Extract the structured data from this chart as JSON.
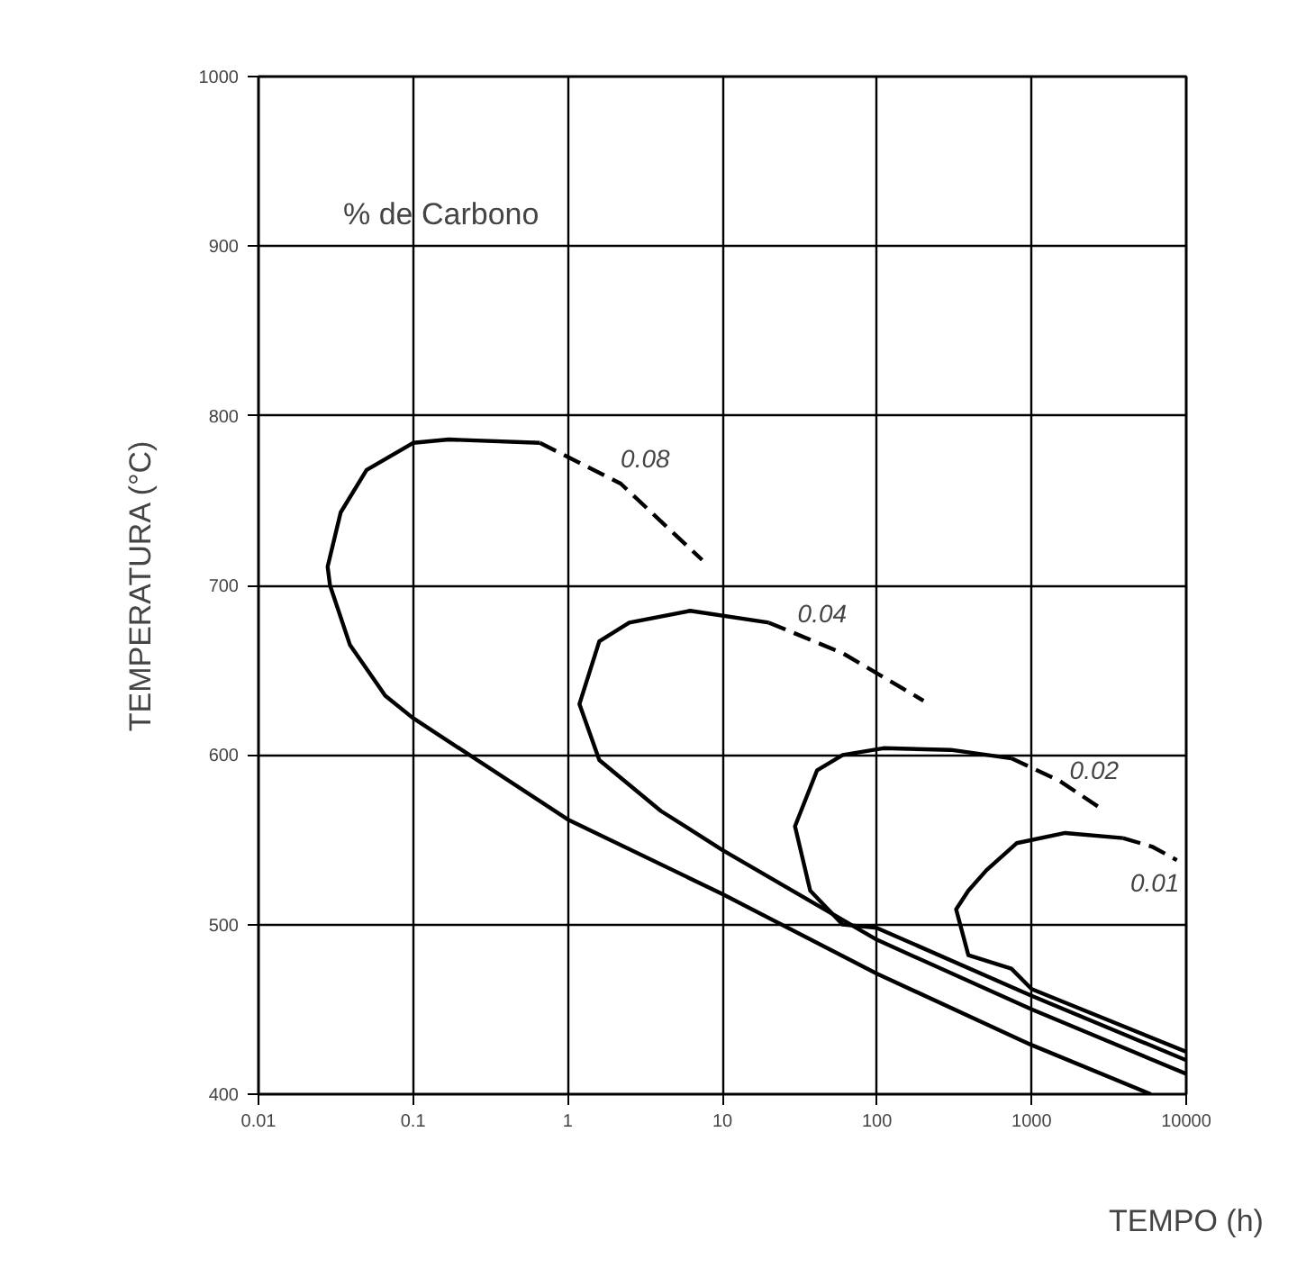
{
  "chart_data": {
    "type": "line",
    "xlabel": "TEMPO (h)",
    "ylabel": "TEMPERATURA (°C)",
    "log": "x",
    "grid": true,
    "marker": "none",
    "xlim": [
      0.01,
      10000
    ],
    "xticks": [
      0.01,
      0.1,
      1,
      10,
      100,
      1000,
      10000
    ],
    "ylim": [
      400,
      1000
    ],
    "yticks": [
      400,
      500,
      600,
      700,
      800,
      900,
      1000
    ],
    "series": [
      {
        "color": "#000000",
        "line_style": "solid",
        "x": [
          0.66,
          0.17,
          0.1,
          0.05,
          0.034,
          0.028,
          0.029,
          0.039,
          0.066,
          0.099,
          1,
          10,
          100,
          1000,
          5900
        ],
        "values": [
          784,
          786,
          784,
          768,
          743,
          711,
          700,
          665,
          635,
          622,
          562,
          518,
          471,
          429,
          400
        ]
      },
      {
        "color": "#000000",
        "line_style": "dashed",
        "x": [
          0.66,
          2.2,
          7.4
        ],
        "values": [
          784,
          760,
          715
        ]
      },
      {
        "color": "#000000",
        "line_style": "solid",
        "x": [
          20,
          6.2,
          2.5,
          1.6,
          1.19,
          1.6,
          4.0,
          10,
          100,
          1000,
          10000
        ],
        "values": [
          678,
          685,
          678,
          667,
          630,
          597,
          567,
          544,
          491,
          450,
          412
        ]
      },
      {
        "color": "#000000",
        "line_style": "dashed",
        "x": [
          20,
          60,
          200
        ],
        "values": [
          678,
          660,
          632
        ]
      },
      {
        "color": "#000000",
        "line_style": "solid",
        "x": [
          740,
          300,
          110,
          60,
          41,
          29.5,
          37,
          60,
          100,
          1000,
          10000
        ],
        "values": [
          598,
          603,
          604,
          600,
          591,
          558,
          520,
          500,
          498,
          458,
          420
        ]
      },
      {
        "color": "#000000",
        "line_style": "dashed",
        "x": [
          740,
          1500,
          2970
        ],
        "values": [
          598,
          585,
          567
        ]
      },
      {
        "color": "#000000",
        "line_style": "solid",
        "x": [
          3900,
          1650,
          800,
          510,
          390,
          325,
          390,
          740,
          1000,
          10000
        ],
        "values": [
          551,
          554,
          548,
          532,
          520,
          509,
          482,
          474,
          462,
          425
        ]
      },
      {
        "color": "#000000",
        "line_style": "dashed",
        "x": [
          3900,
          6000,
          8700
        ],
        "values": [
          551,
          546,
          538
        ]
      }
    ],
    "annotations": [
      "% de Carbono",
      "0.08",
      "0.04",
      "0.02",
      "0.01"
    ]
  }
}
